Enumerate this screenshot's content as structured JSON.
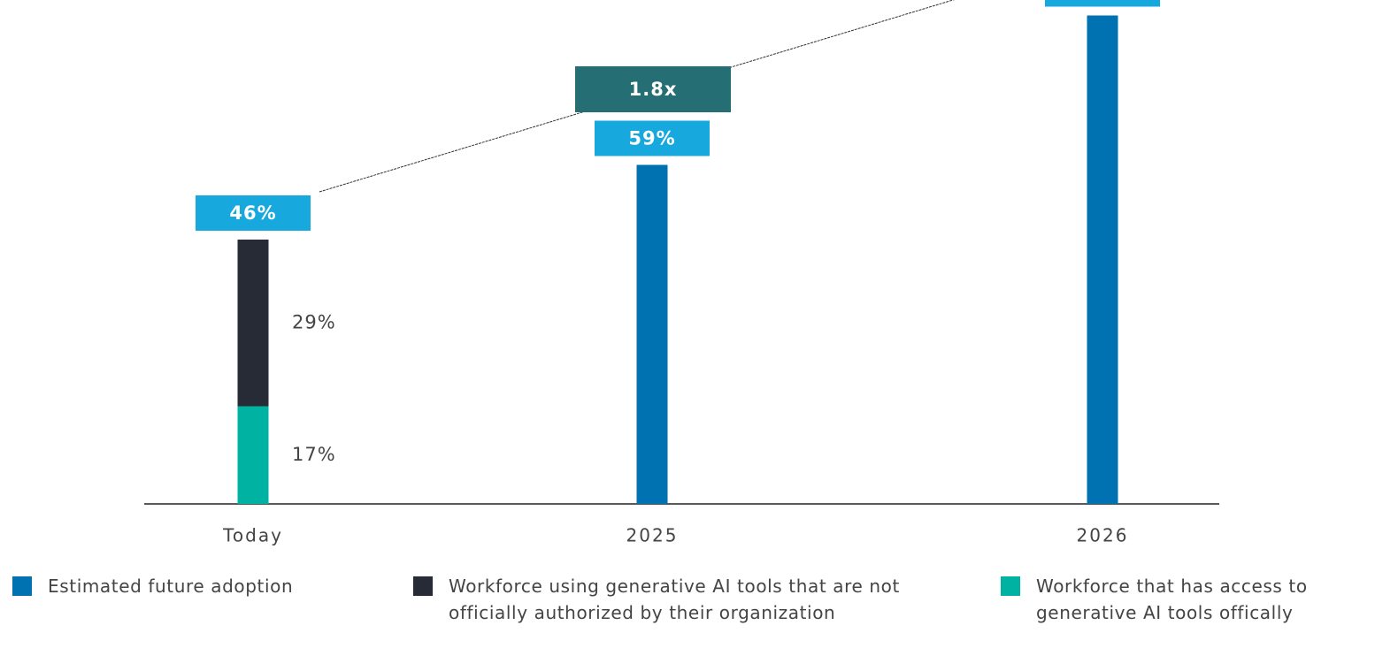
{
  "chart_data": {
    "type": "stacked_bar",
    "categories": [
      "Today",
      "2025",
      "2026"
    ],
    "series": [
      {
        "name": "Estimated future adoption",
        "color": "#0071b1",
        "values": [
          null,
          59,
          85
        ],
        "value_labels": [
          null,
          "59%",
          null
        ]
      },
      {
        "name": "Workforce using generative AI tools that are not officially authorized by their organization",
        "color": "#272b35",
        "values": [
          29,
          null,
          null
        ],
        "value_labels": [
          "29%",
          null,
          null
        ]
      },
      {
        "name": "Workforce that has access to generative AI tools offically",
        "color": "#00b2a2",
        "values": [
          17,
          null,
          null
        ],
        "value_labels": [
          "17%",
          null,
          null
        ]
      }
    ],
    "totals": [
      46,
      null,
      null
    ],
    "total_labels": [
      "46%",
      null,
      null
    ],
    "annotation": "1.8x",
    "label_box_color": "#17a9dd",
    "annotation_color": "#246e74",
    "ylim": [
      0,
      88
    ]
  }
}
